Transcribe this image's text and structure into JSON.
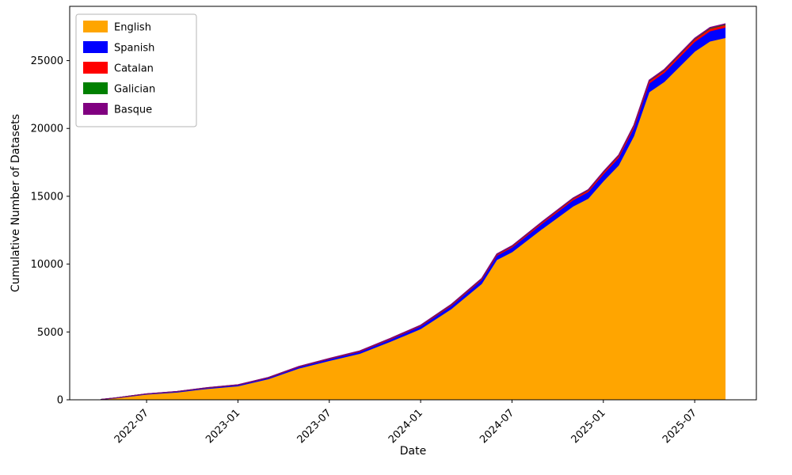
{
  "figure": {
    "background": "#ffffff"
  },
  "chart_data": {
    "type": "area",
    "stacked": true,
    "title": "",
    "xlabel": "Date",
    "ylabel": "Cumulative Number of Datasets",
    "x": [
      "2022-04",
      "2022-05",
      "2022-06",
      "2022-07",
      "2022-09",
      "2022-11",
      "2023-01",
      "2023-03",
      "2023-05",
      "2023-07",
      "2023-09",
      "2023-11",
      "2024-01",
      "2024-03",
      "2024-05",
      "2024-06",
      "2024-07",
      "2024-09",
      "2024-11",
      "2024-12",
      "2025-01",
      "2025-02",
      "2025-03",
      "2025-04",
      "2025-05",
      "2025-07",
      "2025-08",
      "2025-09"
    ],
    "series": [
      {
        "name": "English",
        "color": "#FFA500",
        "values": [
          22,
          130,
          270,
          400,
          560,
          820,
          1020,
          1540,
          2320,
          2880,
          3410,
          4290,
          5230,
          6700,
          8550,
          10320,
          10900,
          12620,
          14260,
          14840,
          16120,
          17290,
          19440,
          22680,
          23450,
          25680,
          26430,
          26690
        ]
      },
      {
        "name": "Spanish",
        "color": "#0000FF",
        "values": [
          5,
          15,
          25,
          35,
          45,
          60,
          70,
          85,
          105,
          125,
          145,
          170,
          200,
          240,
          290,
          320,
          340,
          400,
          460,
          490,
          530,
          560,
          600,
          650,
          670,
          720,
          750,
          760
        ]
      },
      {
        "name": "Catalan",
        "color": "#FF0000",
        "values": [
          2,
          4,
          6,
          8,
          10,
          13,
          15,
          20,
          25,
          30,
          36,
          43,
          50,
          58,
          66,
          70,
          75,
          85,
          100,
          108,
          120,
          128,
          138,
          150,
          156,
          170,
          176,
          180
        ]
      },
      {
        "name": "Galician",
        "color": "#008000",
        "values": [
          1,
          1,
          2,
          3,
          3,
          4,
          5,
          6,
          7,
          8,
          9,
          10,
          12,
          14,
          16,
          17,
          18,
          20,
          22,
          23,
          25,
          27,
          29,
          31,
          33,
          36,
          38,
          40
        ]
      },
      {
        "name": "Basque",
        "color": "#800080",
        "values": [
          1,
          2,
          3,
          4,
          5,
          8,
          10,
          12,
          14,
          16,
          18,
          20,
          22,
          25,
          28,
          30,
          31,
          34,
          37,
          39,
          41,
          43,
          45,
          48,
          50,
          52,
          54,
          55
        ]
      }
    ],
    "xticks": [
      "2022-07",
      "2023-01",
      "2023-07",
      "2024-01",
      "2024-07",
      "2025-01",
      "2025-07"
    ],
    "yticks": [
      0,
      5000,
      10000,
      15000,
      20000,
      25000
    ],
    "ylim": [
      0,
      29000
    ],
    "x_margin_frac": 0.05,
    "tick_label_rotation_deg": 45,
    "legend": {
      "position": "upper left"
    },
    "axis_color": "#000000"
  }
}
